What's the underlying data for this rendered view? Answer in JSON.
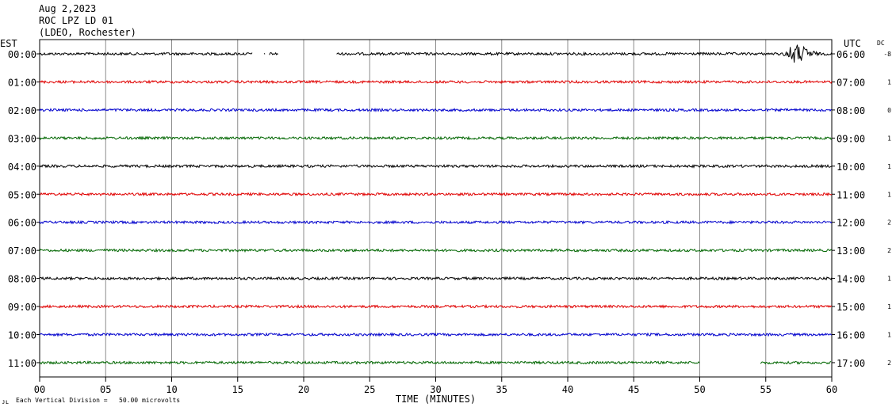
{
  "header": {
    "date": "Aug 2,2023",
    "station": "ROC LPZ LD 01",
    "network": "(LDEO, Rochester)"
  },
  "left_axis_title": "EST",
  "right_axis_title": "UTC",
  "dc_title": "DC",
  "footer": {
    "scale_note": "Each Vertical Division =   50.00 microvolts",
    "corner_mark": "ᴊʟ"
  },
  "chart_data": {
    "type": "line",
    "xlabel": "TIME (MINUTES)",
    "xlim": [
      0,
      60
    ],
    "x_ticks": [
      "00",
      "05",
      "10",
      "15",
      "20",
      "25",
      "30",
      "35",
      "40",
      "45",
      "50",
      "55",
      "60"
    ],
    "grid": true,
    "trace_colors": [
      "#000000",
      "#e00000",
      "#0000cc",
      "#006600"
    ],
    "rows": [
      {
        "est": "00:00",
        "utc": "06:00",
        "dc": "-8",
        "color": "#000000",
        "segments": [
          [
            0,
            16.1
          ],
          [
            17.0,
            17.1
          ],
          [
            17.4,
            18.1
          ],
          [
            22.5,
            60
          ]
        ],
        "event": {
          "start": 56.3,
          "peak": 57.2,
          "end": 59.0
        }
      },
      {
        "est": "01:00",
        "utc": "07:00",
        "dc": "1",
        "color": "#e00000",
        "segments": [
          [
            0,
            60
          ]
        ]
      },
      {
        "est": "02:00",
        "utc": "08:00",
        "dc": "0",
        "color": "#0000cc",
        "segments": [
          [
            0,
            60
          ]
        ]
      },
      {
        "est": "03:00",
        "utc": "09:00",
        "dc": "1",
        "color": "#006600",
        "segments": [
          [
            0,
            60
          ]
        ]
      },
      {
        "est": "04:00",
        "utc": "10:00",
        "dc": "1",
        "color": "#000000",
        "segments": [
          [
            0,
            60
          ]
        ]
      },
      {
        "est": "05:00",
        "utc": "11:00",
        "dc": "1",
        "color": "#e00000",
        "segments": [
          [
            0,
            60
          ]
        ]
      },
      {
        "est": "06:00",
        "utc": "12:00",
        "dc": "2",
        "color": "#0000cc",
        "segments": [
          [
            0,
            60
          ]
        ]
      },
      {
        "est": "07:00",
        "utc": "13:00",
        "dc": "2",
        "color": "#006600",
        "segments": [
          [
            0,
            60
          ]
        ]
      },
      {
        "est": "08:00",
        "utc": "14:00",
        "dc": "1",
        "color": "#000000",
        "segments": [
          [
            0,
            60
          ]
        ]
      },
      {
        "est": "09:00",
        "utc": "15:00",
        "dc": "1",
        "color": "#e00000",
        "segments": [
          [
            0,
            60
          ]
        ]
      },
      {
        "est": "10:00",
        "utc": "16:00",
        "dc": "1",
        "color": "#0000cc",
        "segments": [
          [
            0,
            60
          ]
        ]
      },
      {
        "est": "11:00",
        "utc": "17:00",
        "dc": "2",
        "color": "#006600",
        "segments": [
          [
            0,
            50
          ],
          [
            54.6,
            60
          ]
        ]
      }
    ]
  }
}
